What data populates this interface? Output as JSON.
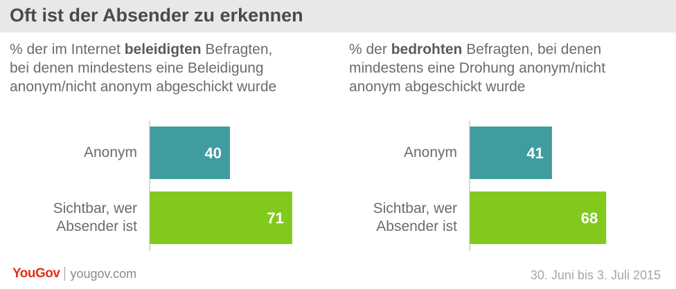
{
  "title": "Oft ist der Absender zu erkennen",
  "panels": [
    {
      "subtitle_lines": [
        {
          "pre": "% der im Internet ",
          "bold": "beleidigten",
          "post": " Befragten,"
        },
        {
          "pre": "bei denen mindestens eine Beleidigung",
          "bold": "",
          "post": ""
        },
        {
          "pre": "anonym/nicht anonym abgeschickt wurde",
          "bold": "",
          "post": ""
        }
      ]
    },
    {
      "subtitle_lines": [
        {
          "pre": "% der ",
          "bold": "bedrohten",
          "post": " Befragten, bei denen"
        },
        {
          "pre": "mindestens eine Drohung anonym/nicht",
          "bold": "",
          "post": ""
        },
        {
          "pre": "anonym abgeschickt wurde",
          "bold": "",
          "post": ""
        }
      ]
    }
  ],
  "chart_data": [
    {
      "type": "bar",
      "orientation": "horizontal",
      "categories": [
        "Anonym",
        "Sichtbar, wer\nAbsender ist"
      ],
      "values": [
        40,
        71
      ],
      "colors": [
        "#3f9c9f",
        "#82c91e"
      ],
      "xlim": [
        0,
        100
      ]
    },
    {
      "type": "bar",
      "orientation": "horizontal",
      "categories": [
        "Anonym",
        "Sichtbar, wer\nAbsender ist"
      ],
      "values": [
        41,
        68
      ],
      "colors": [
        "#3f9c9f",
        "#82c91e"
      ],
      "xlim": [
        0,
        100
      ]
    }
  ],
  "footer": {
    "logo_you": "You",
    "logo_gov": "Gov",
    "site": "yougov.com",
    "date": "30. Juni bis 3. Juli 2015"
  }
}
